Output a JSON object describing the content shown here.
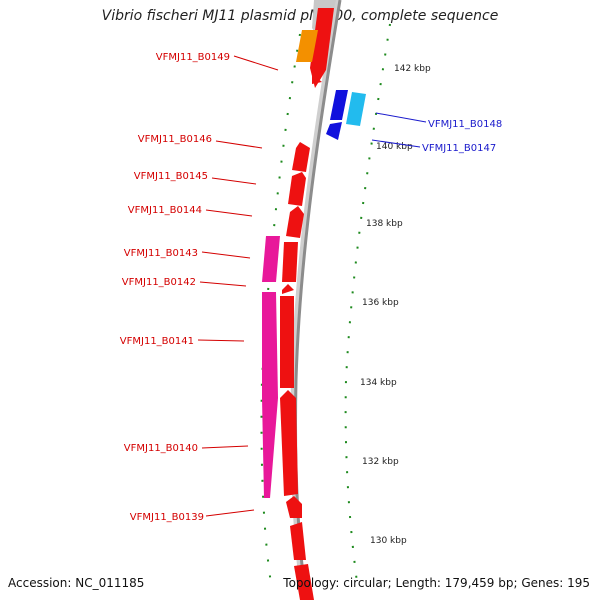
{
  "title": "Vibrio fischeri MJ11 plasmid pMJ100, complete sequence",
  "footer": {
    "accession": "Accession: NC_011185",
    "info": "Topology: circular; Length: 179,459 bp; Genes: 195"
  },
  "kbp_ticks": [
    "142 kbp",
    "140 kbp",
    "138 kbp",
    "136 kbp",
    "134 kbp",
    "132 kbp",
    "130 kbp"
  ],
  "gene_labels": [
    {
      "name": "VFMJ11_B0149",
      "color": "#d40000"
    },
    {
      "name": "VFMJ11_B0148",
      "color": "#1a1acc"
    },
    {
      "name": "VFMJ11_B0147",
      "color": "#1a1acc"
    },
    {
      "name": "VFMJ11_B0146",
      "color": "#d40000"
    },
    {
      "name": "VFMJ11_B0145",
      "color": "#d40000"
    },
    {
      "name": "VFMJ11_B0144",
      "color": "#d40000"
    },
    {
      "name": "VFMJ11_B0143",
      "color": "#d40000"
    },
    {
      "name": "VFMJ11_B0142",
      "color": "#d40000"
    },
    {
      "name": "VFMJ11_B0141",
      "color": "#d40000"
    },
    {
      "name": "VFMJ11_B0140",
      "color": "#d40000"
    },
    {
      "name": "VFMJ11_B0139",
      "color": "#d40000"
    }
  ],
  "colors": {
    "gene_red": "#ee1111",
    "gene_magenta": "#e8189a",
    "gene_orange": "#f39000",
    "gene_blue": "#1111dd",
    "gene_cyan": "#22bbee",
    "backbone": "#8c8c8c",
    "ticks": "#1e8a1e"
  }
}
